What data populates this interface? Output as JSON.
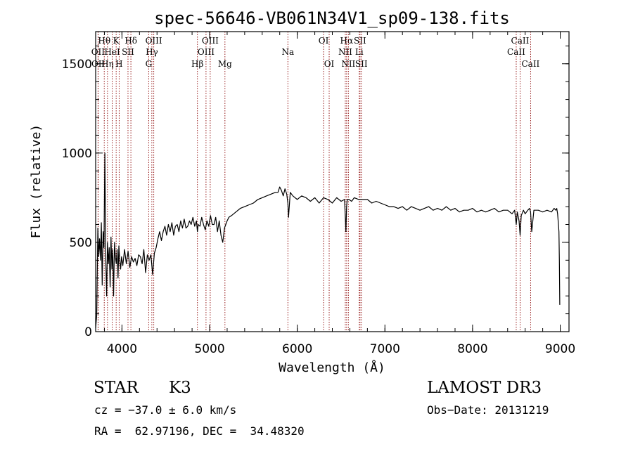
{
  "chart_data": {
    "type": "line",
    "title": "spec-56646-VB061N34V1_sp09-138.fits",
    "xlabel": "Wavelength (Å)",
    "ylabel": "Flux (relative)",
    "xlim": [
      3700,
      9100
    ],
    "ylim": [
      0,
      1680
    ],
    "xticks": [
      4000,
      5000,
      6000,
      7000,
      8000,
      9000
    ],
    "yticks": [
      0,
      500,
      1000,
      1500
    ],
    "series_color": "#000000",
    "line_color": "#8b0000",
    "spectrum": {
      "x": [
        3700,
        3712,
        3725,
        3735,
        3745,
        3755,
        3765,
        3775,
        3785,
        3795,
        3805,
        3815,
        3825,
        3835,
        3845,
        3855,
        3865,
        3875,
        3885,
        3895,
        3905,
        3915,
        3925,
        3935,
        3945,
        3955,
        3965,
        3975,
        3985,
        3995,
        4010,
        4030,
        4050,
        4070,
        4090,
        4110,
        4130,
        4150,
        4170,
        4190,
        4210,
        4230,
        4250,
        4270,
        4290,
        4310,
        4330,
        4350,
        4370,
        4390,
        4410,
        4430,
        4450,
        4470,
        4490,
        4510,
        4530,
        4550,
        4570,
        4590,
        4610,
        4630,
        4650,
        4670,
        4690,
        4710,
        4730,
        4750,
        4770,
        4790,
        4810,
        4830,
        4850,
        4861,
        4870,
        4890,
        4910,
        4930,
        4950,
        4970,
        4990,
        5010,
        5030,
        5050,
        5070,
        5090,
        5110,
        5130,
        5150,
        5170,
        5184,
        5200,
        5220,
        5250,
        5300,
        5350,
        5400,
        5450,
        5500,
        5550,
        5600,
        5650,
        5700,
        5750,
        5780,
        5800,
        5820,
        5840,
        5860,
        5880,
        5893,
        5900,
        5920,
        5950,
        6000,
        6050,
        6100,
        6150,
        6200,
        6250,
        6300,
        6350,
        6400,
        6450,
        6500,
        6540,
        6555,
        6563,
        6570,
        6590,
        6620,
        6650,
        6700,
        6750,
        6800,
        6850,
        6900,
        6950,
        7000,
        7050,
        7100,
        7150,
        7200,
        7250,
        7300,
        7350,
        7400,
        7450,
        7500,
        7550,
        7600,
        7650,
        7700,
        7750,
        7800,
        7850,
        7900,
        7950,
        8000,
        8050,
        8100,
        8150,
        8200,
        8250,
        8300,
        8350,
        8400,
        8450,
        8480,
        8498,
        8510,
        8530,
        8542,
        8555,
        8580,
        8600,
        8630,
        8650,
        8662,
        8675,
        8700,
        8750,
        8800,
        8850,
        8900,
        8930,
        8950,
        8960,
        8970,
        8980,
        8985,
        8990,
        8995
      ],
      "y": [
        20,
        90,
        580,
        420,
        520,
        400,
        610,
        260,
        560,
        470,
        1000,
        420,
        200,
        500,
        380,
        470,
        250,
        530,
        350,
        460,
        200,
        500,
        420,
        380,
        460,
        300,
        480,
        400,
        350,
        420,
        370,
        460,
        380,
        450,
        360,
        420,
        390,
        410,
        370,
        430,
        420,
        380,
        460,
        330,
        430,
        400,
        430,
        320,
        440,
        470,
        520,
        560,
        510,
        560,
        590,
        540,
        600,
        560,
        610,
        540,
        590,
        600,
        560,
        620,
        580,
        630,
        580,
        590,
        620,
        600,
        640,
        590,
        620,
        560,
        600,
        590,
        640,
        600,
        570,
        620,
        590,
        650,
        600,
        600,
        640,
        560,
        620,
        540,
        500,
        580,
        600,
        620,
        640,
        650,
        670,
        690,
        700,
        710,
        720,
        740,
        750,
        760,
        770,
        780,
        780,
        810,
        790,
        760,
        800,
        770,
        720,
        640,
        780,
        760,
        740,
        760,
        750,
        730,
        750,
        720,
        750,
        740,
        720,
        750,
        730,
        740,
        560,
        700,
        740,
        740,
        730,
        750,
        740,
        740,
        740,
        720,
        730,
        720,
        710,
        700,
        700,
        690,
        700,
        680,
        700,
        690,
        680,
        690,
        700,
        680,
        690,
        680,
        700,
        680,
        690,
        670,
        680,
        680,
        690,
        670,
        680,
        670,
        680,
        690,
        670,
        680,
        680,
        660,
        680,
        600,
        670,
        620,
        540,
        650,
        680,
        660,
        680,
        690,
        670,
        560,
        680,
        680,
        670,
        680,
        670,
        690,
        680,
        690,
        660,
        600,
        560,
        400,
        150
      ]
    },
    "lines": [
      {
        "label": "Hθ",
        "x": 3798,
        "row": 1
      },
      {
        "label": "OII",
        "x": 3727,
        "row": 2
      },
      {
        "label": "HeI",
        "x": 3889,
        "row": 2
      },
      {
        "label": "Hη",
        "x": 3835,
        "row": 3
      },
      {
        "label": "OII",
        "x": 3729,
        "row": 3
      },
      {
        "label": "K",
        "x": 3934,
        "row": 1
      },
      {
        "label": "SII",
        "x": 4069,
        "row": 2
      },
      {
        "label": "H",
        "x": 3968,
        "row": 3
      },
      {
        "label": "Hδ",
        "x": 4102,
        "row": 1
      },
      {
        "label": "OIII",
        "x": 4363,
        "row": 1
      },
      {
        "label": "Hγ",
        "x": 4341,
        "row": 2
      },
      {
        "label": "G",
        "x": 4305,
        "row": 3
      },
      {
        "label": "OIII",
        "x": 5007,
        "row": 1
      },
      {
        "label": "OIII",
        "x": 4959,
        "row": 2
      },
      {
        "label": "Hβ",
        "x": 4861,
        "row": 3
      },
      {
        "label": "Mg",
        "x": 5175,
        "row": 3
      },
      {
        "label": "Na",
        "x": 5893,
        "row": 2
      },
      {
        "label": "OI",
        "x": 6300,
        "row": 1
      },
      {
        "label": "OI",
        "x": 6364,
        "row": 3
      },
      {
        "label": "Hα",
        "x": 6563,
        "row": 1
      },
      {
        "label": "SII",
        "x": 6716,
        "row": 1
      },
      {
        "label": "NII",
        "x": 6548,
        "row": 2
      },
      {
        "label": "Li",
        "x": 6707,
        "row": 2
      },
      {
        "label": "NII",
        "x": 6583,
        "row": 3
      },
      {
        "label": "SII",
        "x": 6731,
        "row": 3
      },
      {
        "label": "CaII",
        "x": 8542,
        "row": 1
      },
      {
        "label": "CaII",
        "x": 8498,
        "row": 2
      },
      {
        "label": "CaII",
        "x": 8662,
        "row": 3
      }
    ]
  },
  "info": {
    "object_class": "STAR",
    "subclass": "K3",
    "survey": "LAMOST DR3",
    "cz": "cz = −37.0 ± 6.0 km/s",
    "obs_date": "Obs−Date: 20131219",
    "coords": "RA =  62.97196, DEC =  34.48320"
  }
}
